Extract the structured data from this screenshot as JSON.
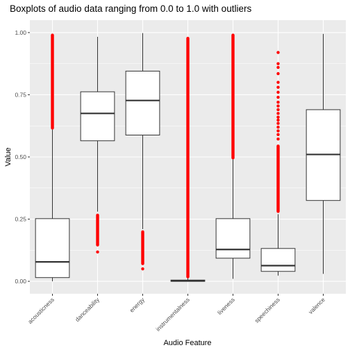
{
  "chart_data": {
    "type": "boxplot",
    "title": "Boxplots of audio data ranging from 0.0 to 1.0 with outliers",
    "xlabel": "Audio Feature",
    "ylabel": "Value",
    "ylim": [
      -0.05,
      1.05
    ],
    "yticks": [
      0.0,
      0.25,
      0.5,
      0.75,
      1.0
    ],
    "ytick_labels": [
      "0.00",
      "0.25",
      "0.50",
      "0.75",
      "1.00"
    ],
    "grid": true,
    "outlier_color": "#ff0000",
    "panel_color": "#ebebeb",
    "grid_color": "#ffffff",
    "categories": [
      "acousticness",
      "danceability",
      "energy",
      "instrumentalness",
      "liveness",
      "speechiness",
      "valence"
    ],
    "boxes": [
      {
        "name": "acousticness",
        "whisker_low": 0.0,
        "q1": 0.015,
        "median": 0.078,
        "q3": 0.252,
        "whisker_high": 0.61,
        "outlier_ranges": [
          [
            0.61,
            0.996
          ]
        ],
        "outliers": []
      },
      {
        "name": "danceability",
        "whisker_low": 0.28,
        "q1": 0.565,
        "median": 0.675,
        "q3": 0.762,
        "whisker_high": 0.983,
        "outlier_ranges": [
          [
            0.14,
            0.272
          ]
        ],
        "outliers": [
          0.118
        ]
      },
      {
        "name": "energy",
        "whisker_low": 0.21,
        "q1": 0.588,
        "median": 0.727,
        "q3": 0.845,
        "whisker_high": 0.998,
        "outlier_ranges": [
          [
            0.065,
            0.205
          ]
        ],
        "outliers": [
          0.05
        ]
      },
      {
        "name": "instrumentalness",
        "whisker_low": 0.0,
        "q1": 0.0,
        "median": 0.0015,
        "q3": 0.005,
        "whisker_high": 0.012,
        "outlier_ranges": [
          [
            0.012,
            0.983
          ]
        ],
        "outliers": []
      },
      {
        "name": "liveness",
        "whisker_low": 0.01,
        "q1": 0.093,
        "median": 0.128,
        "q3": 0.252,
        "whisker_high": 0.49,
        "outlier_ranges": [
          [
            0.49,
            0.996
          ]
        ],
        "outliers": []
      },
      {
        "name": "speechiness",
        "whisker_low": 0.023,
        "q1": 0.04,
        "median": 0.063,
        "q3": 0.132,
        "whisker_high": 0.27,
        "outlier_ranges": [
          [
            0.275,
            0.55
          ]
        ],
        "outliers": [
          0.572,
          0.59,
          0.605,
          0.62,
          0.635,
          0.648,
          0.66,
          0.675,
          0.69,
          0.705,
          0.72,
          0.74,
          0.76,
          0.78,
          0.8,
          0.835,
          0.86,
          0.875,
          0.92
        ]
      },
      {
        "name": "valence",
        "whisker_low": 0.03,
        "q1": 0.325,
        "median": 0.51,
        "q3": 0.69,
        "whisker_high": 0.995,
        "outlier_ranges": [],
        "outliers": []
      }
    ]
  }
}
